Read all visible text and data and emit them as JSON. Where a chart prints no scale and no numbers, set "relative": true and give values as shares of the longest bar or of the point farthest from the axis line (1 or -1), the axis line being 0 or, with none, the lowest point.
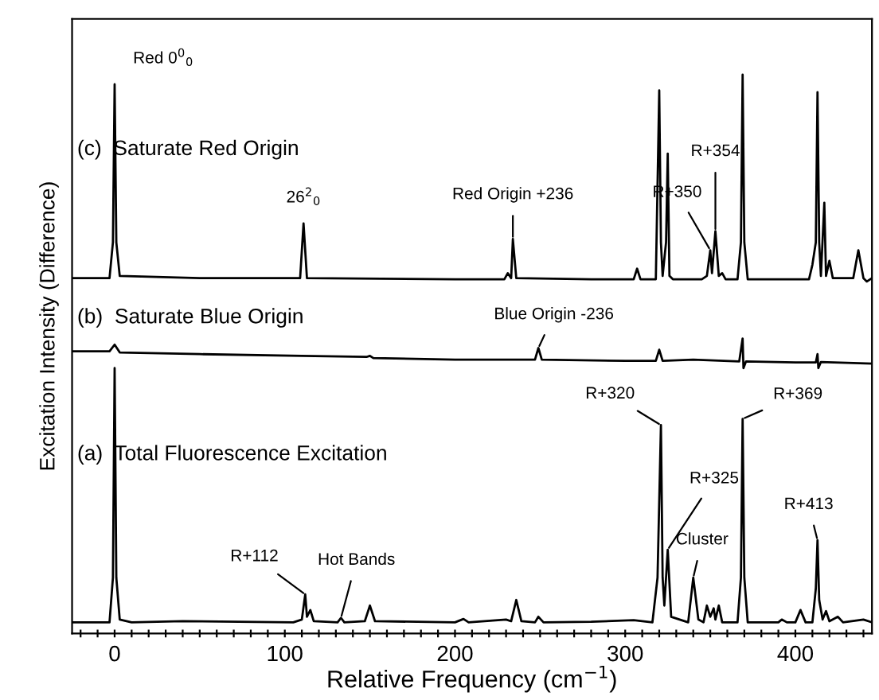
{
  "chart_data": {
    "type": "line",
    "relative": true,
    "xlabel": "Relative Frequency (cm$^{−1}$)",
    "ylabel": "Excitation Intensity (Difference)",
    "xlim": [
      -25,
      445
    ],
    "xticks": [
      {
        "value": -20,
        "label": null
      },
      {
        "value": -10,
        "label": null
      },
      0,
      {
        "value": 10,
        "label": null
      },
      {
        "value": 20,
        "label": null
      },
      {
        "value": 30,
        "label": null
      },
      {
        "value": 40,
        "label": null
      },
      {
        "value": 50,
        "label": null
      },
      {
        "value": 60,
        "label": null
      },
      {
        "value": 70,
        "label": null
      },
      {
        "value": 80,
        "label": null
      },
      {
        "value": 90,
        "label": null
      },
      100,
      {
        "value": 110,
        "label": null
      },
      {
        "value": 120,
        "label": null
      },
      {
        "value": 130,
        "label": null
      },
      {
        "value": 140,
        "label": null
      },
      {
        "value": 150,
        "label": null
      },
      {
        "value": 160,
        "label": null
      },
      {
        "value": 170,
        "label": null
      },
      {
        "value": 180,
        "label": null
      },
      {
        "value": 190,
        "label": null
      },
      200,
      {
        "value": 210,
        "label": null
      },
      {
        "value": 220,
        "label": null
      },
      {
        "value": 230,
        "label": null
      },
      {
        "value": 240,
        "label": null
      },
      {
        "value": 250,
        "label": null
      },
      {
        "value": 260,
        "label": null
      },
      {
        "value": 270,
        "label": null
      },
      {
        "value": 280,
        "label": null
      },
      {
        "value": 290,
        "label": null
      },
      300,
      {
        "value": 310,
        "label": null
      },
      {
        "value": 320,
        "label": null
      },
      {
        "value": 330,
        "label": null
      },
      {
        "value": 340,
        "label": null
      },
      {
        "value": 350,
        "label": null
      },
      {
        "value": 360,
        "label": null
      },
      {
        "value": 370,
        "label": null
      },
      {
        "value": 380,
        "label": null
      },
      {
        "value": 390,
        "label": null
      },
      400,
      {
        "value": 410,
        "label": null
      },
      {
        "value": 420,
        "label": null
      },
      {
        "value": 430,
        "label": null
      },
      {
        "value": 440,
        "label": null
      }
    ],
    "grid": false,
    "legend": false,
    "tick_labels": "x",
    "series": [
      {
        "name": "(a)  Total Fluorescence Excitation",
        "color": "#000000",
        "x": [
          -25,
          -3,
          -1,
          0,
          1,
          3,
          10,
          40,
          105,
          110,
          112,
          113,
          115,
          117,
          131,
          133,
          135,
          147,
          150,
          153,
          200,
          205,
          208,
          230,
          233,
          236,
          239,
          247,
          249,
          252,
          280,
          305,
          316,
          319,
          321,
          322,
          323,
          325,
          327,
          337,
          340,
          343,
          346,
          348,
          350,
          352,
          353,
          355,
          357,
          366,
          368,
          369,
          370,
          372,
          390,
          392,
          395,
          400,
          403,
          406,
          410,
          412,
          413,
          414,
          416,
          418,
          420,
          425,
          428,
          440,
          445
        ],
        "values": [
          0.02,
          0.02,
          0.1,
          0.475,
          0.1,
          0.025,
          0.02,
          0.022,
          0.02,
          0.025,
          0.07,
          0.03,
          0.042,
          0.022,
          0.02,
          0.028,
          0.02,
          0.022,
          0.05,
          0.022,
          0.02,
          0.026,
          0.02,
          0.025,
          0.022,
          0.06,
          0.022,
          0.02,
          0.03,
          0.02,
          0.021,
          0.024,
          0.02,
          0.1,
          0.373,
          0.1,
          0.05,
          0.15,
          0.03,
          0.02,
          0.1,
          0.025,
          0.02,
          0.05,
          0.03,
          0.045,
          0.025,
          0.05,
          0.02,
          0.02,
          0.1,
          0.384,
          0.1,
          0.02,
          0.02,
          0.025,
          0.02,
          0.02,
          0.042,
          0.02,
          0.02,
          0.08,
          0.167,
          0.06,
          0.025,
          0.04,
          0.022,
          0.03,
          0.02,
          0.025,
          0.02
        ]
      },
      {
        "name": "(b)  Saturate Blue Origin",
        "color": "#000000",
        "x": [
          -25,
          -3,
          0,
          3,
          50,
          110,
          148,
          150,
          152,
          200,
          247,
          249,
          251,
          300,
          318,
          320,
          322,
          340,
          367,
          369,
          369.5,
          371,
          400,
          412,
          413,
          413.5,
          415,
          445
        ],
        "values": [
          0.505,
          0.505,
          0.517,
          0.503,
          0.5,
          0.497,
          0.495,
          0.497,
          0.493,
          0.49,
          0.49,
          0.511,
          0.49,
          0.488,
          0.488,
          0.508,
          0.488,
          0.49,
          0.487,
          0.528,
          0.475,
          0.487,
          0.485,
          0.485,
          0.5,
          0.475,
          0.486,
          0.483
        ]
      },
      {
        "name": "(c)  Saturate Red Origin",
        "color": "#000000",
        "x": [
          -25,
          -3,
          -1,
          0,
          1,
          3,
          50,
          109,
          111,
          113,
          200,
          229,
          231,
          233,
          234,
          236,
          280,
          305,
          307,
          309,
          318,
          320,
          321,
          322,
          324,
          325,
          326,
          328,
          345,
          348,
          350,
          351,
          353,
          355,
          357,
          359,
          366,
          368,
          369,
          370,
          372,
          408,
          410,
          412,
          413,
          414,
          415,
          417,
          418,
          420,
          422,
          434,
          437,
          440,
          442,
          445
        ],
        "values": [
          0.636,
          0.636,
          0.7,
          0.983,
          0.7,
          0.64,
          0.636,
          0.636,
          0.734,
          0.636,
          0.634,
          0.634,
          0.645,
          0.636,
          0.706,
          0.636,
          0.634,
          0.634,
          0.653,
          0.634,
          0.634,
          0.972,
          0.7,
          0.64,
          0.7,
          0.859,
          0.64,
          0.634,
          0.634,
          0.64,
          0.686,
          0.645,
          0.72,
          0.64,
          0.645,
          0.634,
          0.634,
          0.7,
          1.0,
          0.7,
          0.634,
          0.634,
          0.66,
          0.7,
          0.969,
          0.7,
          0.64,
          0.771,
          0.64,
          0.667,
          0.636,
          0.636,
          0.686,
          0.636,
          0.63,
          0.636
        ]
      }
    ],
    "annotations": [
      {
        "text": "Red 0$^{0}$$_{0}$",
        "x": 0,
        "y": 0.983
      },
      {
        "text": "26$^{2}$$_{0}$",
        "x": 111,
        "y": 0.734
      },
      {
        "text": "Red Origin +236",
        "x": 234,
        "y": 0.706
      },
      {
        "text": "R+354",
        "x": 353,
        "y": 0.72
      },
      {
        "text": "R+350",
        "x": 350,
        "y": 0.686
      },
      {
        "text": "Blue Origin -236",
        "x": 249,
        "y": 0.511
      },
      {
        "text": "R+320",
        "x": 321,
        "y": 0.373
      },
      {
        "text": "R+369",
        "x": 369,
        "y": 0.384
      },
      {
        "text": "R+325",
        "x": 325,
        "y": 0.15
      },
      {
        "text": "Cluster",
        "x": 340,
        "y": 0.1
      },
      {
        "text": "R+413",
        "x": 413,
        "y": 0.167
      },
      {
        "text": "R+112",
        "x": 112,
        "y": 0.07
      },
      {
        "text": "Hot Bands",
        "x": 133,
        "y": 0.028
      }
    ]
  }
}
